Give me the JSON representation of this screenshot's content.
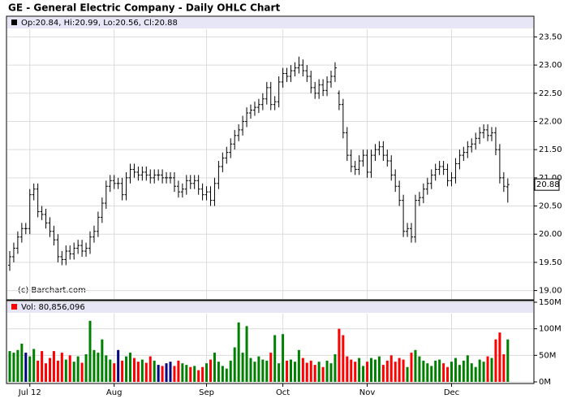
{
  "chart_data": {
    "type": "ohlc",
    "title": "GE - General Electric Company - Daily OHLC Chart",
    "legend_text": "Op:20.84, Hi:20.99, Lo:20.56, Cl:20.88",
    "copyright": "(c) Barchart.com",
    "color": "#000000",
    "grid": true,
    "categories": [
      null,
      null,
      null,
      null,
      null,
      "Jul 12",
      null,
      null,
      null,
      null,
      null,
      null,
      null,
      null,
      null,
      null,
      null,
      null,
      null,
      null,
      null,
      null,
      null,
      null,
      null,
      null,
      "Aug",
      null,
      null,
      null,
      null,
      null,
      null,
      null,
      null,
      null,
      null,
      null,
      null,
      null,
      null,
      null,
      null,
      null,
      null,
      null,
      null,
      null,
      null,
      "Sep",
      null,
      null,
      null,
      null,
      null,
      null,
      null,
      null,
      null,
      null,
      null,
      null,
      null,
      null,
      null,
      null,
      null,
      null,
      "Oct",
      null,
      null,
      null,
      null,
      null,
      null,
      null,
      null,
      null,
      null,
      null,
      null,
      null,
      null,
      null,
      null,
      null,
      null,
      null,
      null,
      "Nov",
      null,
      null,
      null,
      null,
      null,
      null,
      null,
      null,
      null,
      null,
      null,
      null,
      null,
      null,
      null,
      null,
      null,
      null,
      null,
      null,
      "Dec",
      null,
      null,
      null,
      null,
      null,
      null,
      null,
      null,
      null,
      null,
      null,
      null,
      null,
      null
    ],
    "open": [
      19.45,
      19.6,
      19.75,
      19.95,
      20.1,
      20.1,
      20.7,
      20.8,
      20.4,
      20.35,
      20.2,
      20.05,
      19.9,
      19.6,
      19.55,
      19.7,
      19.65,
      19.75,
      19.8,
      19.7,
      19.75,
      19.95,
      20.05,
      20.3,
      20.55,
      20.85,
      20.95,
      20.9,
      20.9,
      20.7,
      21.0,
      21.15,
      21.1,
      21.05,
      21.1,
      21.05,
      21.0,
      21.05,
      21.05,
      21.0,
      21.0,
      21.0,
      20.85,
      20.75,
      20.8,
      20.95,
      20.9,
      20.95,
      20.8,
      20.7,
      20.75,
      20.6,
      20.9,
      21.2,
      21.35,
      21.45,
      21.6,
      21.75,
      21.85,
      22.0,
      22.15,
      22.2,
      22.25,
      22.3,
      22.4,
      22.6,
      22.3,
      22.35,
      22.7,
      22.85,
      22.8,
      22.9,
      22.95,
      23.0,
      22.9,
      22.8,
      22.6,
      22.5,
      22.65,
      22.55,
      22.7,
      22.8,
      22.5,
      22.3,
      21.8,
      21.4,
      21.2,
      21.15,
      21.3,
      21.4,
      21.1,
      21.4,
      21.5,
      21.55,
      21.4,
      21.3,
      21.05,
      20.85,
      20.6,
      20.05,
      20.1,
      19.95,
      20.6,
      20.65,
      20.8,
      20.9,
      21.05,
      21.15,
      21.2,
      21.15,
      20.95,
      21.0,
      21.25,
      21.4,
      21.45,
      21.55,
      21.6,
      21.7,
      21.8,
      21.85,
      21.75,
      21.8,
      21.5,
      21.0,
      20.84
    ],
    "high": [
      19.7,
      19.85,
      20.05,
      20.2,
      20.2,
      20.8,
      20.9,
      20.9,
      20.5,
      20.45,
      20.3,
      20.15,
      20.0,
      19.7,
      19.8,
      19.8,
      19.85,
      19.9,
      19.9,
      19.85,
      20.05,
      20.15,
      20.4,
      20.65,
      20.95,
      21.05,
      21.05,
      21.0,
      21.0,
      21.1,
      21.25,
      21.25,
      21.2,
      21.2,
      21.2,
      21.15,
      21.15,
      21.15,
      21.15,
      21.1,
      21.1,
      21.1,
      20.95,
      20.9,
      21.05,
      21.05,
      21.05,
      21.05,
      20.9,
      20.85,
      20.85,
      21.0,
      21.3,
      21.45,
      21.55,
      21.7,
      21.85,
      21.95,
      22.1,
      22.25,
      22.3,
      22.35,
      22.4,
      22.5,
      22.7,
      22.7,
      22.45,
      22.8,
      22.95,
      22.95,
      23.0,
      23.05,
      23.15,
      23.1,
      23.0,
      22.9,
      22.7,
      22.75,
      22.75,
      22.8,
      22.9,
      23.05,
      22.55,
      22.4,
      21.9,
      21.5,
      21.3,
      21.4,
      21.5,
      21.5,
      21.5,
      21.6,
      21.65,
      21.65,
      21.5,
      21.4,
      21.15,
      20.95,
      20.7,
      20.2,
      20.2,
      20.7,
      20.75,
      20.9,
      21.0,
      21.15,
      21.25,
      21.3,
      21.3,
      21.25,
      21.1,
      21.35,
      21.5,
      21.55,
      21.65,
      21.7,
      21.8,
      21.9,
      21.95,
      21.95,
      21.9,
      21.9,
      21.6,
      21.1,
      20.99
    ],
    "low": [
      19.35,
      19.5,
      19.65,
      19.85,
      20.0,
      20.0,
      20.6,
      20.3,
      20.25,
      20.1,
      19.95,
      19.8,
      19.5,
      19.45,
      19.45,
      19.55,
      19.55,
      19.65,
      19.6,
      19.6,
      19.65,
      19.85,
      19.95,
      20.2,
      20.45,
      20.75,
      20.8,
      20.8,
      20.6,
      20.6,
      20.9,
      21.0,
      20.95,
      20.95,
      20.95,
      20.9,
      20.9,
      20.95,
      20.9,
      20.9,
      20.9,
      20.75,
      20.65,
      20.65,
      20.7,
      20.8,
      20.8,
      20.7,
      20.6,
      20.6,
      20.5,
      20.5,
      20.8,
      21.1,
      21.25,
      21.35,
      21.5,
      21.65,
      21.75,
      21.9,
      22.05,
      22.1,
      22.15,
      22.2,
      22.3,
      22.2,
      22.2,
      22.25,
      22.6,
      22.7,
      22.7,
      22.8,
      22.85,
      22.8,
      22.7,
      22.5,
      22.4,
      22.4,
      22.45,
      22.45,
      22.6,
      22.7,
      22.2,
      21.7,
      21.3,
      21.1,
      21.05,
      21.05,
      21.2,
      21.0,
      21.0,
      21.3,
      21.4,
      21.3,
      21.2,
      20.95,
      20.75,
      20.5,
      19.95,
      19.95,
      19.85,
      19.85,
      20.5,
      20.55,
      20.7,
      20.8,
      20.95,
      21.05,
      21.05,
      20.85,
      20.85,
      20.9,
      21.15,
      21.3,
      21.35,
      21.45,
      21.5,
      21.6,
      21.7,
      21.65,
      21.65,
      21.4,
      20.9,
      20.75,
      20.56
    ],
    "close": [
      19.6,
      19.75,
      19.95,
      20.1,
      20.1,
      20.7,
      20.8,
      20.4,
      20.35,
      20.2,
      20.05,
      19.9,
      19.6,
      19.55,
      19.7,
      19.65,
      19.75,
      19.8,
      19.7,
      19.75,
      19.95,
      20.05,
      20.3,
      20.55,
      20.85,
      20.95,
      20.9,
      20.9,
      20.7,
      21.0,
      21.15,
      21.1,
      21.05,
      21.1,
      21.05,
      21.0,
      21.05,
      21.05,
      21.0,
      21.0,
      21.0,
      20.85,
      20.75,
      20.8,
      20.95,
      20.9,
      20.95,
      20.8,
      20.7,
      20.75,
      20.6,
      20.9,
      21.2,
      21.35,
      21.45,
      21.6,
      21.75,
      21.85,
      22.0,
      22.15,
      22.2,
      22.25,
      22.3,
      22.4,
      22.6,
      22.3,
      22.35,
      22.7,
      22.85,
      22.8,
      22.9,
      22.95,
      23.0,
      22.9,
      22.8,
      22.6,
      22.5,
      22.65,
      22.55,
      22.7,
      22.8,
      22.95,
      22.3,
      21.8,
      21.4,
      21.2,
      21.15,
      21.3,
      21.4,
      21.1,
      21.4,
      21.5,
      21.55,
      21.4,
      21.3,
      21.05,
      20.85,
      20.6,
      20.05,
      20.1,
      19.95,
      20.6,
      20.65,
      20.8,
      20.9,
      21.05,
      21.15,
      21.2,
      21.15,
      20.95,
      21.0,
      21.25,
      21.4,
      21.45,
      21.55,
      21.6,
      21.7,
      21.8,
      21.85,
      21.75,
      21.8,
      21.5,
      21.0,
      20.85,
      20.88
    ],
    "ylim": [
      18.85,
      23.65
    ],
    "yticks": [
      {
        "value": 19,
        "label": "19.00"
      },
      {
        "value": 19.5,
        "label": "19.50"
      },
      {
        "value": 20,
        "label": "20.00"
      },
      {
        "value": 20.5,
        "label": "20.50"
      },
      {
        "value": 21,
        "label": "21.00"
      },
      {
        "value": 21.5,
        "label": "21.50"
      },
      {
        "value": 22,
        "label": "22.00"
      },
      {
        "value": 22.5,
        "label": "22.50"
      },
      {
        "value": 23,
        "label": "23.00"
      },
      {
        "value": 23.5,
        "label": "23.50"
      }
    ],
    "price_marker": {
      "value": 20.88,
      "label": "20.88"
    },
    "volume": {
      "legend_text": "Vol: 80,856,096",
      "legend_color": "#ff0000",
      "colors": {
        "up": "#008000",
        "down": "#ff0000",
        "flat": "#000080"
      },
      "values": [
        58,
        55,
        60,
        72,
        55,
        48,
        62,
        40,
        58,
        35,
        45,
        58,
        40,
        55,
        42,
        50,
        38,
        48,
        36,
        52,
        115,
        60,
        55,
        80,
        50,
        42,
        35,
        60,
        40,
        48,
        55,
        45,
        38,
        42,
        36,
        48,
        40,
        32,
        30,
        35,
        38,
        30,
        40,
        35,
        32,
        28,
        30,
        22,
        28,
        35,
        42,
        55,
        38,
        30,
        25,
        40,
        65,
        112,
        55,
        105,
        45,
        38,
        48,
        42,
        40,
        55,
        88,
        35,
        90,
        40,
        42,
        38,
        60,
        45,
        36,
        40,
        32,
        38,
        28,
        40,
        35,
        52,
        100,
        88,
        48,
        42,
        38,
        45,
        30,
        38,
        45,
        42,
        48,
        32,
        40,
        50,
        38,
        45,
        42,
        28,
        55,
        60,
        48,
        40,
        35,
        30,
        40,
        42,
        35,
        28,
        38,
        45,
        32,
        40,
        50,
        35,
        28,
        42,
        38,
        48,
        45,
        80,
        93,
        52,
        80
      ],
      "ylim": [
        0,
        150
      ],
      "yticks": [
        {
          "value": 0,
          "label": "0M"
        },
        {
          "value": 50,
          "label": "50M"
        },
        {
          "value": 100,
          "label": "100M"
        },
        {
          "value": 150,
          "label": "150M"
        }
      ]
    }
  }
}
